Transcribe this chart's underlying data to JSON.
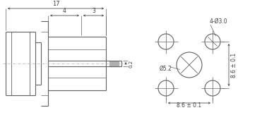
{
  "bg_color": "#ffffff",
  "line_color": "#606060",
  "text_color": "#404040",
  "fig_width": 3.71,
  "fig_height": 1.8,
  "dpi": 100,
  "left_view": {
    "label_17": "17",
    "label_4": "4",
    "label_3": "3",
    "label_02": "0.2"
  },
  "right_view": {
    "label_holes": "4-Ø3.0",
    "label_center": "Ø5.2",
    "label_h": "8.6 ± 0.1",
    "label_w": "8.6 ± 0.1"
  }
}
